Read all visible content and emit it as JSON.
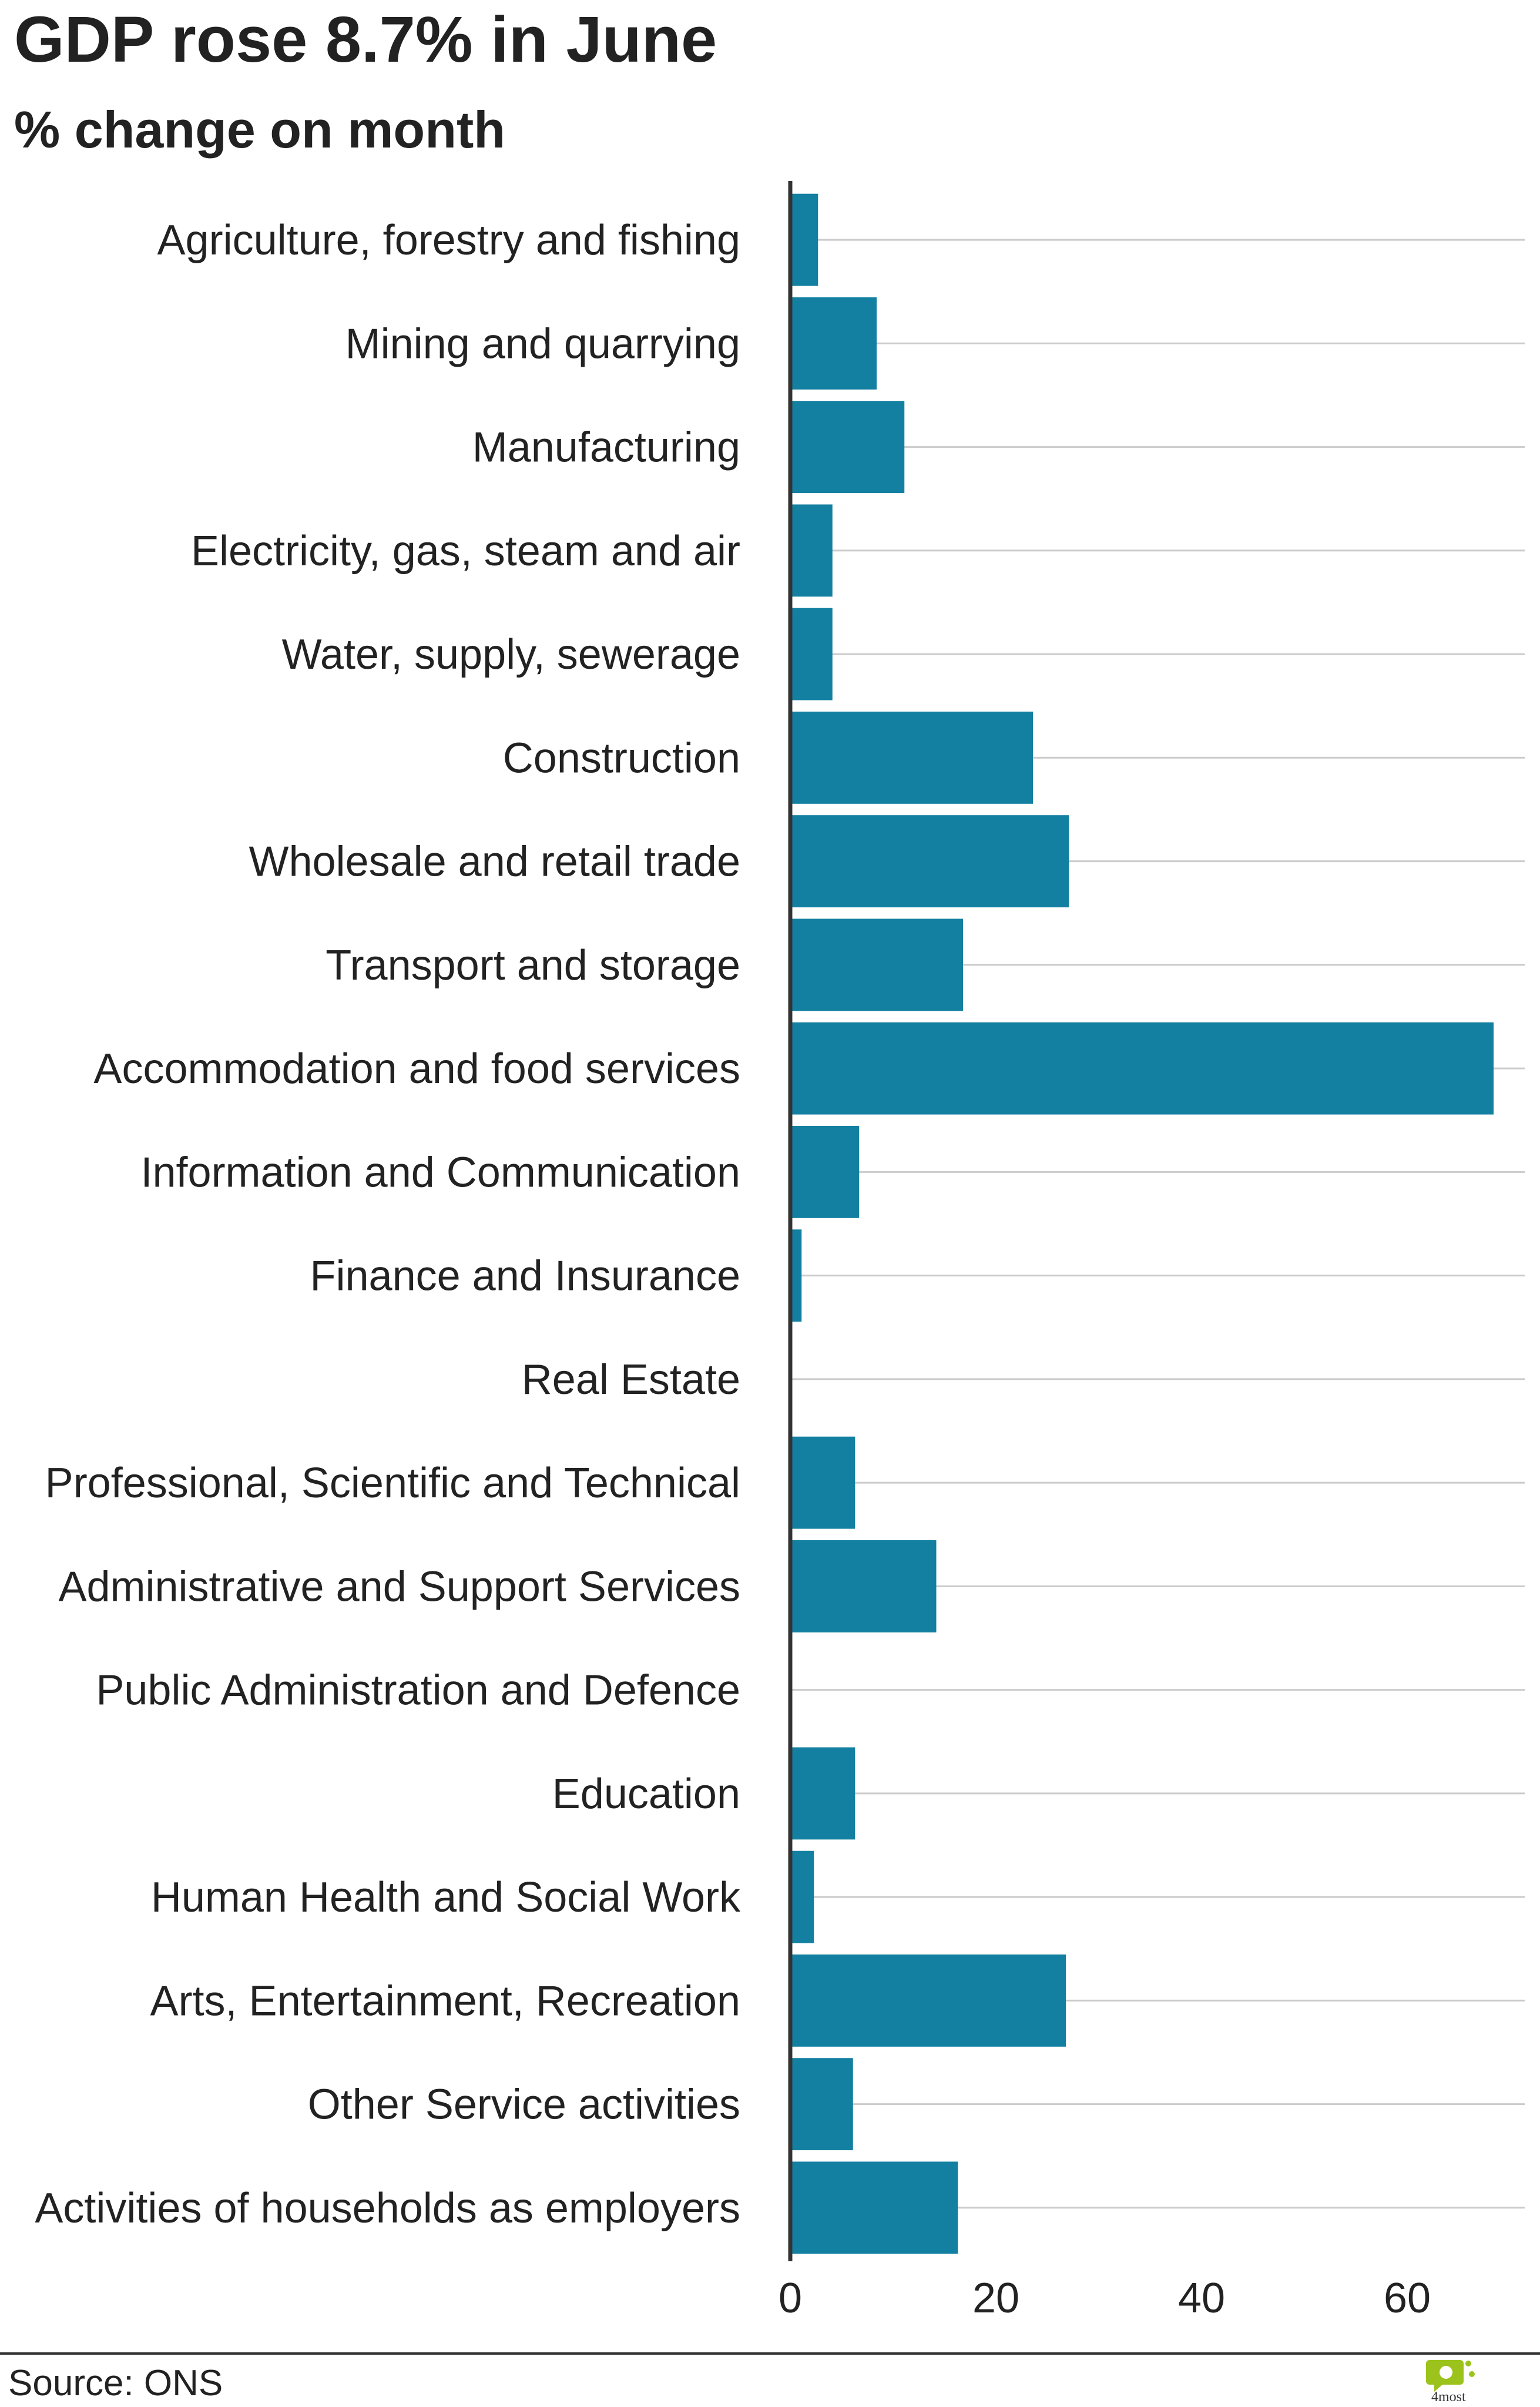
{
  "chart_data": {
    "type": "bar",
    "orientation": "horizontal",
    "title": "GDP rose 8.7% in June",
    "subtitle": "% change on month",
    "categories": [
      "Agriculture, forestry and fishing",
      "Mining and quarrying",
      "Manufacturing",
      "Electricity, gas, steam and air",
      "Water, supply, sewerage",
      "Construction",
      "Wholesale and retail trade",
      "Transport and storage",
      "Accommodation and food services",
      "Information and Communication",
      "Finance and Insurance",
      "Real Estate",
      "Professional, Scientific and Technical",
      "Administrative and Support Services",
      "Public Administration and Defence",
      "Education",
      "Human Health and Social Work",
      "Arts, Entertainment, Recreation",
      "Other Service activities",
      "Activities of households as employers"
    ],
    "values": [
      2.7,
      8.4,
      11.1,
      4.1,
      4.1,
      23.6,
      27.1,
      16.8,
      68.4,
      6.7,
      1.1,
      0.2,
      6.3,
      14.2,
      0.1,
      6.3,
      2.3,
      26.8,
      6.1,
      16.3
    ],
    "xlabel": "",
    "ylabel": "",
    "xlim": [
      0,
      72
    ],
    "xticks": [
      0,
      20,
      40,
      60
    ],
    "grid": true,
    "bar_color": "#1380a1",
    "gridline_color": "#cbcbcb",
    "axis_color": "#333333"
  },
  "footer": {
    "source": "Source: ONS",
    "logo_text": "4most"
  },
  "colors": {
    "text": "#222222",
    "logo_green": "#9bc31c"
  }
}
